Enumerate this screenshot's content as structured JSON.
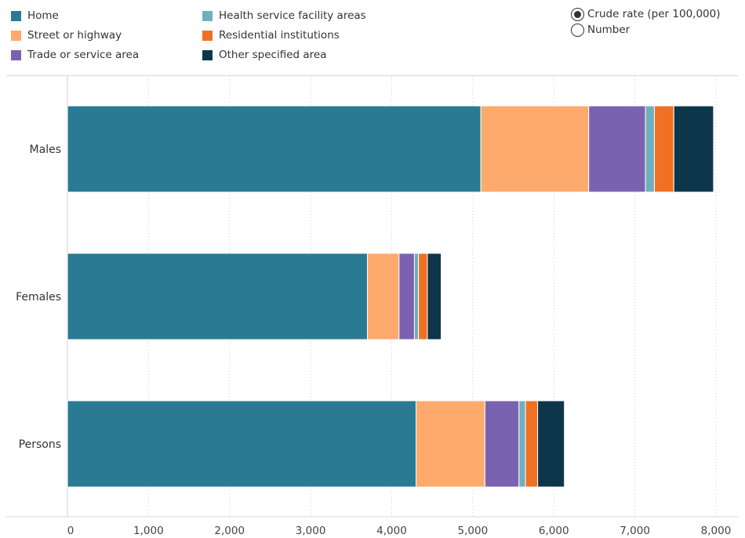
{
  "legend": [
    {
      "label": "Home",
      "color": "#2a7a94"
    },
    {
      "label": "Street or highway",
      "color": "#fdaa6c"
    },
    {
      "label": "Trade or service area",
      "color": "#7b62b0"
    },
    {
      "label": "Health service facility areas",
      "color": "#70afbd"
    },
    {
      "label": "Residential institutions",
      "color": "#f07124"
    },
    {
      "label": "Other specified area",
      "color": "#0e364a"
    }
  ],
  "measure_toggle": {
    "options": [
      "Crude rate (per 100,000)",
      "Number"
    ],
    "selected": 0
  },
  "chart_data": {
    "type": "bar",
    "orientation": "horizontal",
    "stacked": true,
    "categories": [
      "Males",
      "Females",
      "Persons"
    ],
    "series": [
      {
        "name": "Home",
        "color": "#2a7a94",
        "values": [
          5100,
          3700,
          4300
        ]
      },
      {
        "name": "Street or highway",
        "color": "#fdaa6c",
        "values": [
          1330,
          390,
          850
        ]
      },
      {
        "name": "Trade or service area",
        "color": "#7b62b0",
        "values": [
          700,
          190,
          420
        ]
      },
      {
        "name": "Health service facility areas",
        "color": "#70afbd",
        "values": [
          110,
          50,
          80
        ]
      },
      {
        "name": "Residential institutions",
        "color": "#f07124",
        "values": [
          240,
          110,
          150
        ]
      },
      {
        "name": "Other specified area",
        "color": "#0e364a",
        "values": [
          490,
          170,
          330
        ]
      }
    ],
    "xlim": [
      0,
      8000
    ],
    "xticks": [
      0,
      1000,
      2000,
      3000,
      4000,
      5000,
      6000,
      7000,
      8000
    ],
    "xtick_labels": [
      "0",
      "1,000",
      "2,000",
      "3,000",
      "4,000",
      "5,000",
      "6,000",
      "7,000",
      "8,000"
    ],
    "grid": true,
    "legend_position": "top"
  }
}
